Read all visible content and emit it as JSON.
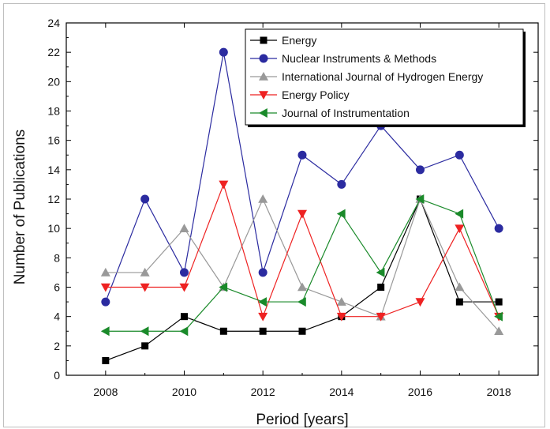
{
  "chart_data": {
    "type": "line",
    "title": "",
    "xlabel": "Period [years]",
    "ylabel": "Number of Publications",
    "xlim": [
      2007,
      2019
    ],
    "ylim": [
      0,
      24
    ],
    "x_ticks": [
      2008,
      2010,
      2012,
      2014,
      2016,
      2018
    ],
    "y_ticks": [
      0,
      2,
      4,
      6,
      8,
      10,
      12,
      14,
      16,
      18,
      20,
      22,
      24
    ],
    "x": [
      2008,
      2009,
      2010,
      2011,
      2012,
      2013,
      2014,
      2015,
      2016,
      2017,
      2018
    ],
    "grid": false,
    "legend_position": "top-right",
    "series": [
      {
        "name": "Energy",
        "color": "#000000",
        "marker": "square",
        "values": [
          1,
          2,
          4,
          3,
          3,
          3,
          4,
          6,
          12,
          5,
          5
        ]
      },
      {
        "name": "Nuclear Instruments & Methods",
        "color": "#2b2ba0",
        "marker": "circle",
        "values": [
          5,
          12,
          7,
          22,
          7,
          15,
          13,
          17,
          14,
          15,
          10
        ]
      },
      {
        "name": "International Journal of Hydrogen Energy",
        "color": "#999999",
        "marker": "triangle-up",
        "values": [
          7,
          7,
          10,
          6,
          12,
          6,
          5,
          4,
          12,
          6,
          3
        ]
      },
      {
        "name": "Energy Policy",
        "color": "#ee2222",
        "marker": "triangle-down",
        "values": [
          6,
          6,
          6,
          13,
          4,
          11,
          4,
          4,
          5,
          10,
          4
        ]
      },
      {
        "name": "Journal of Instrumentation",
        "color": "#1a8a2a",
        "marker": "triangle-left",
        "values": [
          3,
          3,
          3,
          6,
          5,
          5,
          11,
          7,
          12,
          11,
          4
        ]
      }
    ]
  }
}
